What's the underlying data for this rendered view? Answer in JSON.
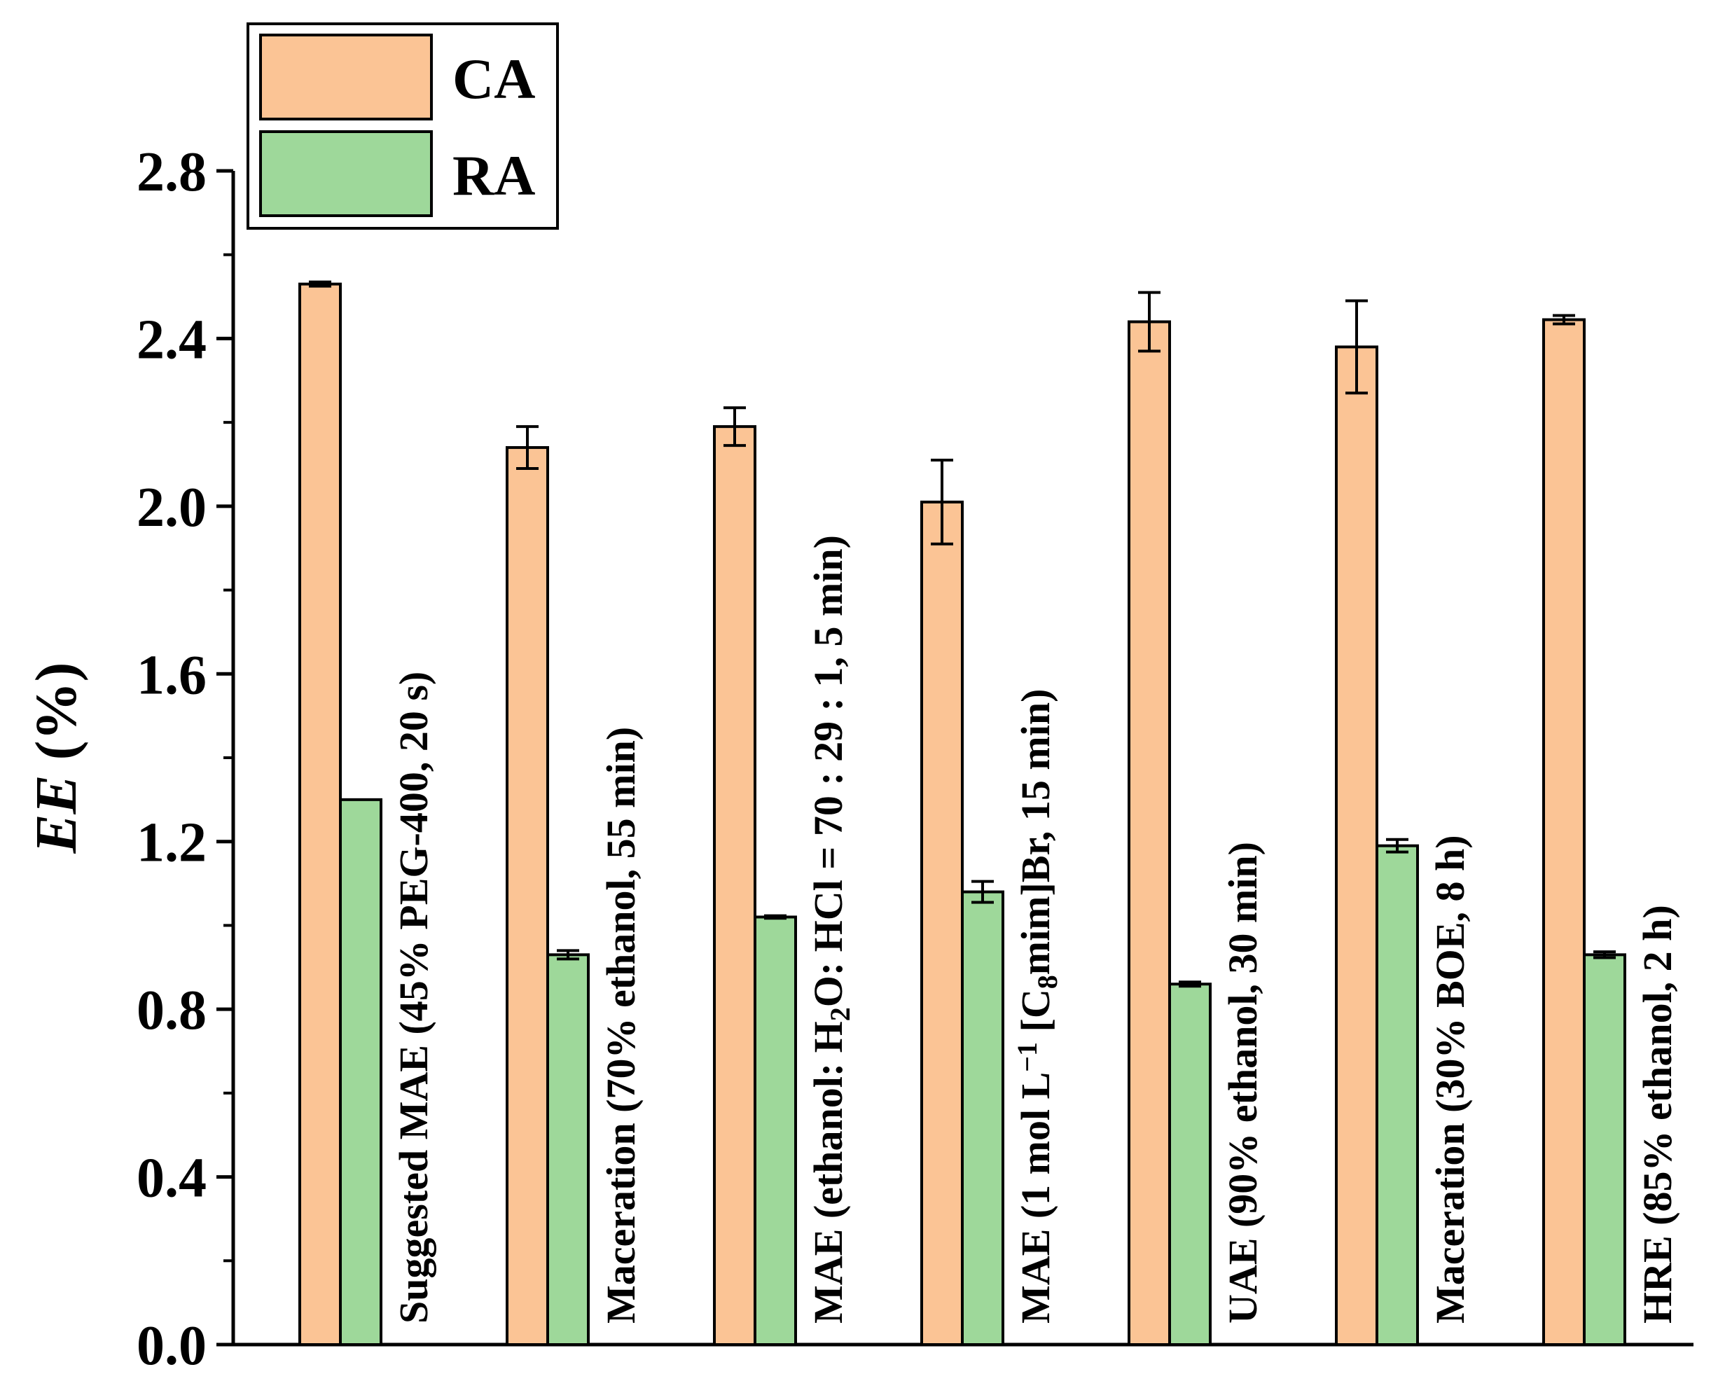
{
  "chart_data": {
    "type": "bar",
    "title": "",
    "xlabel": "",
    "ylabel": {
      "italic": "EE",
      "rest": " (%)"
    },
    "ylim": [
      0,
      2.8
    ],
    "yticks": [
      {
        "value": 0.0,
        "label": "0.0"
      },
      {
        "value": 0.4,
        "label": "0.4"
      },
      {
        "value": 0.8,
        "label": "0.8"
      },
      {
        "value": 1.2,
        "label": "1.2"
      },
      {
        "value": 1.6,
        "label": "1.6"
      },
      {
        "value": 2.0,
        "label": "2.0"
      },
      {
        "value": 2.4,
        "label": "2.4"
      },
      {
        "value": 2.8,
        "label": "2.8"
      }
    ],
    "y_minor_step": 0.2,
    "grid": false,
    "legend": {
      "position": "top-left"
    },
    "categories": [
      [
        {
          "t": "Suggested MAE (45% PEG-400, 20 s)"
        }
      ],
      [
        {
          "t": "Maceration (70% ethanol, 55 min)"
        }
      ],
      [
        {
          "t": "MAE (ethanol: H"
        },
        {
          "t": "2",
          "sub": true
        },
        {
          "t": "O: HCl = 70 : 29 : 1, 5 min)"
        }
      ],
      [
        {
          "t": "MAE (1 mol L"
        },
        {
          "t": "−1",
          "sup": true
        },
        {
          "t": " [C"
        },
        {
          "t": "8",
          "sub": true
        },
        {
          "t": "mim]Br, 15 min)"
        }
      ],
      [
        {
          "t": "UAE (90% ethanol, 30 min)"
        }
      ],
      [
        {
          "t": "Maceration (30% BOE, 8 h)"
        }
      ],
      [
        {
          "t": "HRE (85% ethanol, 2 h)"
        }
      ]
    ],
    "series": [
      {
        "name": "CA",
        "color": "#FBC495",
        "values": [
          2.53,
          2.14,
          2.19,
          2.01,
          2.44,
          2.38,
          2.445
        ],
        "errors": [
          0.005,
          0.05,
          0.045,
          0.1,
          0.07,
          0.11,
          0.01
        ]
      },
      {
        "name": "RA",
        "color": "#9ED89A",
        "values": [
          1.3,
          0.93,
          1.02,
          1.08,
          0.86,
          1.19,
          0.93
        ],
        "errors": [
          0.0,
          0.01,
          0.003,
          0.025,
          0.005,
          0.015,
          0.007
        ]
      }
    ]
  }
}
